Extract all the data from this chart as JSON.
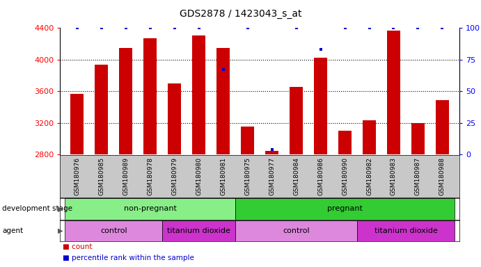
{
  "title": "GDS2878 / 1423043_s_at",
  "samples": [
    "GSM180976",
    "GSM180985",
    "GSM180989",
    "GSM180978",
    "GSM180979",
    "GSM180980",
    "GSM180981",
    "GSM180975",
    "GSM180977",
    "GSM180984",
    "GSM180986",
    "GSM180990",
    "GSM180982",
    "GSM180983",
    "GSM180987",
    "GSM180988"
  ],
  "counts": [
    3570,
    3940,
    4150,
    4270,
    3700,
    4310,
    4150,
    3150,
    2840,
    3650,
    4020,
    3100,
    3230,
    4370,
    3200,
    3490
  ],
  "percentile_ranks": [
    100,
    100,
    100,
    100,
    100,
    100,
    67,
    100,
    4,
    100,
    83,
    100,
    100,
    100,
    100,
    100
  ],
  "ylim_left": [
    2800,
    4400
  ],
  "ylim_right": [
    0,
    100
  ],
  "yticks_left": [
    2800,
    3200,
    3600,
    4000,
    4400
  ],
  "yticks_right": [
    0,
    25,
    50,
    75,
    100
  ],
  "bar_color": "#cc0000",
  "dot_color": "#0000cc",
  "background_color": "#ffffff",
  "tick_area_color": "#c8c8c8",
  "gridline_ticks": [
    3200,
    3600,
    4000
  ],
  "groups": {
    "development_stage": [
      {
        "label": "non-pregnant",
        "start": 0,
        "end": 7,
        "color": "#88ee88"
      },
      {
        "label": "pregnant",
        "start": 7,
        "end": 16,
        "color": "#33cc33"
      }
    ],
    "agent": [
      {
        "label": "control",
        "start": 0,
        "end": 4,
        "color": "#dd88dd"
      },
      {
        "label": "titanium dioxide",
        "start": 4,
        "end": 7,
        "color": "#cc33cc"
      },
      {
        "label": "control",
        "start": 7,
        "end": 12,
        "color": "#dd88dd"
      },
      {
        "label": "titanium dioxide",
        "start": 12,
        "end": 16,
        "color": "#cc33cc"
      }
    ]
  }
}
